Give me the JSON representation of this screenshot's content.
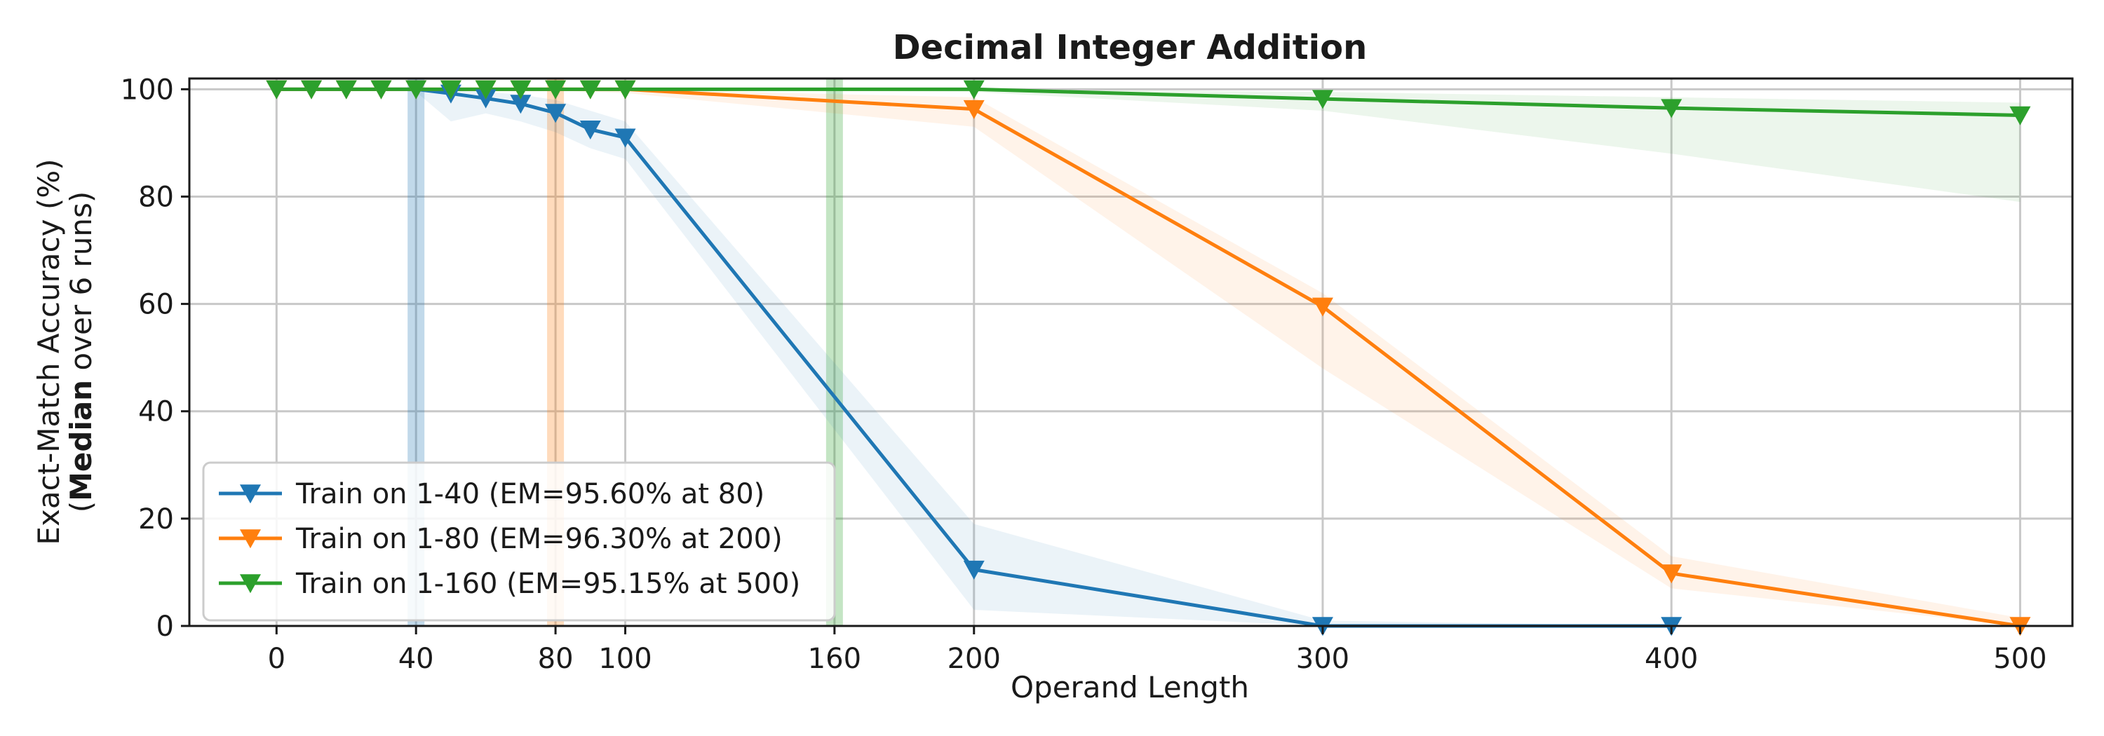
{
  "chart_data": {
    "type": "line",
    "title": "Decimal Integer Addition",
    "xlabel": "Operand Length",
    "ylabel_line1": "Exact-Match Accuracy (%)",
    "ylabel_line2_bold": "Median",
    "ylabel_line2_rest": " over 6 runs)",
    "ylabel_line2_prefix": "(",
    "xlim": [
      -25,
      515
    ],
    "ylim": [
      0,
      102
    ],
    "xticks": [
      0,
      40,
      80,
      100,
      160,
      200,
      300,
      400,
      500
    ],
    "yticks": [
      0,
      20,
      40,
      60,
      80,
      100
    ],
    "grid": true,
    "legend_position": "lower-left",
    "series": [
      {
        "name": "Train on 1-40 (EM=95.60% at 80)",
        "color": "#1f77b4",
        "train_length": 40,
        "x": [
          0,
          10,
          20,
          30,
          40,
          50,
          60,
          70,
          80,
          90,
          100,
          200,
          300,
          400
        ],
        "y": [
          100,
          100,
          100,
          100,
          100,
          99.2,
          98.3,
          97.3,
          95.6,
          92.5,
          91.0,
          10.5,
          0,
          0
        ],
        "band_lower": [
          100,
          100,
          100,
          100,
          99.5,
          94,
          95.5,
          94,
          92,
          89,
          87,
          3,
          0,
          0
        ],
        "band_upper": [
          100,
          100,
          100,
          100,
          100,
          100,
          99.5,
          99,
          98,
          96,
          94,
          19,
          1,
          0
        ]
      },
      {
        "name": "Train on 1-80 (EM=96.30% at 200)",
        "color": "#ff7f0e",
        "train_length": 80,
        "x": [
          0,
          10,
          20,
          30,
          40,
          50,
          60,
          70,
          80,
          90,
          100,
          200,
          300,
          400,
          500
        ],
        "y": [
          100,
          100,
          100,
          100,
          100,
          100,
          100,
          100,
          100,
          100,
          100,
          96.3,
          59.5,
          9.8,
          0
        ],
        "band_lower": [
          100,
          100,
          100,
          100,
          100,
          100,
          100,
          100,
          99.8,
          99.5,
          99.3,
          93,
          48,
          7,
          0
        ],
        "band_upper": [
          100,
          100,
          100,
          100,
          100,
          100,
          100,
          100,
          100,
          100,
          100,
          98.5,
          62,
          13,
          1.5
        ]
      },
      {
        "name": "Train on 1-160 (EM=95.15% at 500)",
        "color": "#2ca02c",
        "train_length": 160,
        "x": [
          0,
          10,
          20,
          30,
          40,
          50,
          60,
          70,
          80,
          90,
          100,
          200,
          300,
          400,
          500
        ],
        "y": [
          100,
          100,
          100,
          100,
          100,
          100,
          100,
          100,
          100,
          100,
          100,
          100,
          98.2,
          96.5,
          95.15
        ],
        "band_lower": [
          100,
          100,
          100,
          100,
          100,
          100,
          100,
          100,
          100,
          100,
          100,
          99.5,
          96,
          88,
          79
        ],
        "band_upper": [
          100,
          100,
          100,
          100,
          100,
          100,
          100,
          100,
          100,
          100,
          100,
          100,
          99.5,
          98.5,
          97.5
        ]
      }
    ]
  }
}
